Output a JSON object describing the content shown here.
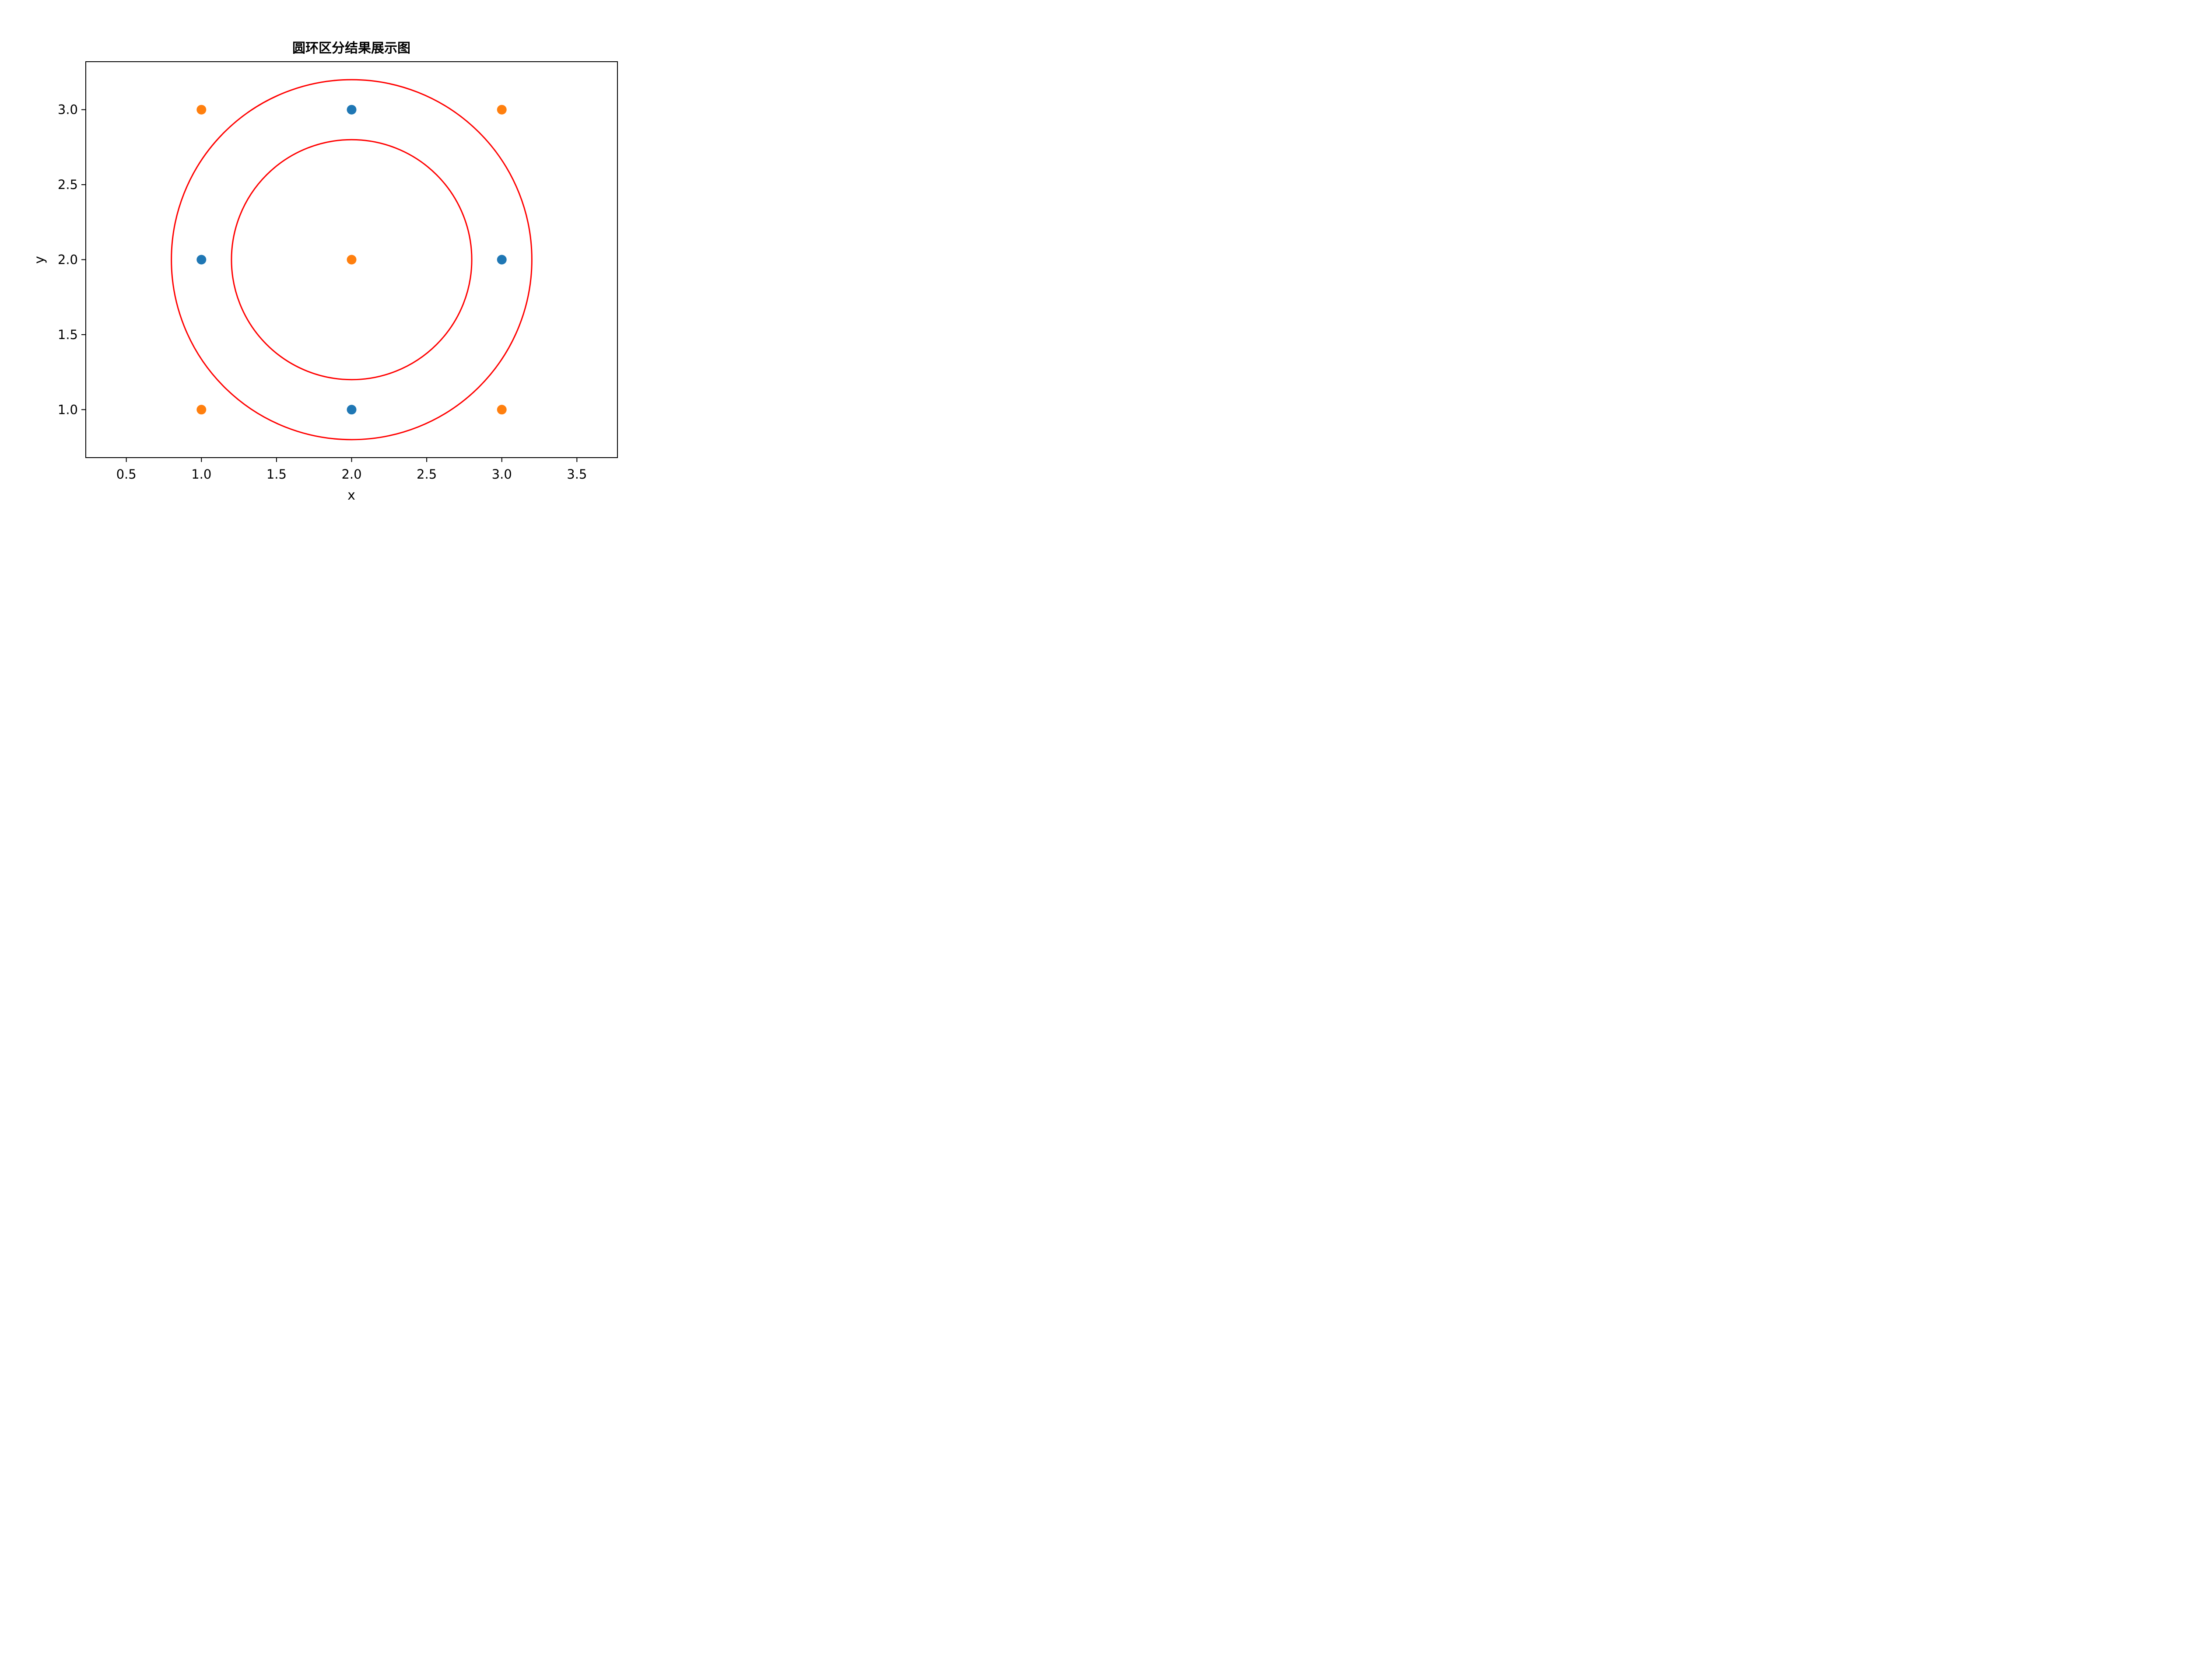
{
  "chart_data": {
    "type": "scatter",
    "title": "圆环区分结果展示图",
    "xlabel": "x",
    "ylabel": "y",
    "xlim": [
      0.23,
      3.77
    ],
    "ylim": [
      0.68,
      3.32
    ],
    "xticks": [
      0.5,
      1.0,
      1.5,
      2.0,
      2.5,
      3.0,
      3.5
    ],
    "xtick_labels": [
      "0.5",
      "1.0",
      "1.5",
      "2.0",
      "2.5",
      "3.0",
      "3.5"
    ],
    "yticks": [
      1.0,
      1.5,
      2.0,
      2.5,
      3.0
    ],
    "ytick_labels": [
      "1.0",
      "1.5",
      "2.0",
      "2.5",
      "3.0"
    ],
    "grid": false,
    "series": [
      {
        "color": "#1f77b4",
        "points": [
          {
            "x": 2.0,
            "y": 3.0
          },
          {
            "x": 1.0,
            "y": 2.0
          },
          {
            "x": 3.0,
            "y": 2.0
          },
          {
            "x": 2.0,
            "y": 1.0
          }
        ]
      },
      {
        "color": "#ff7f0e",
        "points": [
          {
            "x": 1.0,
            "y": 3.0
          },
          {
            "x": 3.0,
            "y": 3.0
          },
          {
            "x": 2.0,
            "y": 2.0
          },
          {
            "x": 1.0,
            "y": 1.0
          },
          {
            "x": 3.0,
            "y": 1.0
          }
        ]
      }
    ],
    "circles": [
      {
        "center": [
          2.0,
          2.0
        ],
        "radius": 1.2,
        "color": "#ff0000"
      },
      {
        "center": [
          2.0,
          2.0
        ],
        "radius": 0.8,
        "color": "#ff0000"
      }
    ]
  }
}
